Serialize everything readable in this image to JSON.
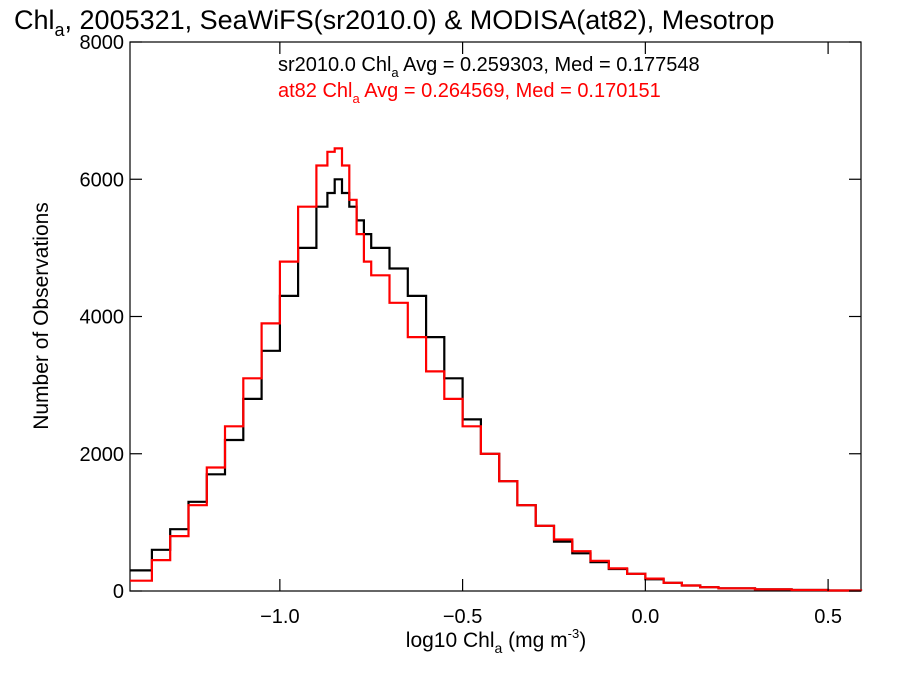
{
  "chart_data": {
    "type": "line",
    "title": {
      "pre": "Chl",
      "sub": "a",
      "post": ", 2005321, SeaWiFS(sr2010.0) & MODISA(at82), Mesotrop"
    },
    "xlabel": {
      "pre": "log10 Chl",
      "sub": "a",
      "mid": " (mg m",
      "sup": "-3",
      "post": ")"
    },
    "ylabel": "Number of Observations",
    "xlim": [
      -1.41,
      0.59
    ],
    "ylim": [
      0,
      8000
    ],
    "x_ticks": [
      {
        "value": -1.0,
        "label": "−1.0"
      },
      {
        "value": -0.5,
        "label": "−0.5"
      },
      {
        "value": 0.0,
        "label": "0.0"
      },
      {
        "value": 0.5,
        "label": "0.5"
      }
    ],
    "y_ticks": [
      {
        "value": 0,
        "label": "0"
      },
      {
        "value": 2000,
        "label": "2000"
      },
      {
        "value": 4000,
        "label": "4000"
      },
      {
        "value": 6000,
        "label": "6000"
      },
      {
        "value": 8000,
        "label": "8000"
      }
    ],
    "grid": false,
    "annotations": [
      {
        "pre": "sr2010.0 Chl",
        "sub": "a",
        "post": " Avg = 0.259303, Med = 0.177548",
        "color": "#000000"
      },
      {
        "pre": "at82 Chl",
        "sub": "a",
        "post": " Avg = 0.264569, Med = 0.170151",
        "color": "#ff0000"
      }
    ],
    "series": [
      {
        "color": "#000000",
        "x": [
          -1.41,
          -1.35,
          -1.3,
          -1.25,
          -1.2,
          -1.15,
          -1.1,
          -1.05,
          -1.0,
          -0.95,
          -0.9,
          -0.87,
          -0.85,
          -0.83,
          -0.81,
          -0.79,
          -0.77,
          -0.75,
          -0.7,
          -0.65,
          -0.6,
          -0.55,
          -0.5,
          -0.45,
          -0.4,
          -0.35,
          -0.3,
          -0.25,
          -0.2,
          -0.15,
          -0.1,
          -0.05,
          0.0,
          0.05,
          0.1,
          0.15,
          0.2,
          0.3,
          0.4,
          0.5,
          0.59
        ],
        "y": [
          300,
          600,
          900,
          1300,
          1700,
          2200,
          2800,
          3500,
          4300,
          5000,
          5600,
          5800,
          6000,
          5800,
          5600,
          5400,
          5200,
          5000,
          4700,
          4300,
          3700,
          3100,
          2500,
          2000,
          1600,
          1250,
          950,
          720,
          550,
          420,
          320,
          250,
          170,
          120,
          80,
          55,
          40,
          25,
          15,
          8,
          5
        ]
      },
      {
        "color": "#ff0000",
        "x": [
          -1.41,
          -1.35,
          -1.3,
          -1.25,
          -1.2,
          -1.15,
          -1.1,
          -1.05,
          -1.0,
          -0.95,
          -0.9,
          -0.87,
          -0.85,
          -0.83,
          -0.81,
          -0.79,
          -0.77,
          -0.75,
          -0.7,
          -0.65,
          -0.6,
          -0.55,
          -0.5,
          -0.45,
          -0.4,
          -0.35,
          -0.3,
          -0.25,
          -0.2,
          -0.15,
          -0.1,
          -0.05,
          0.0,
          0.05,
          0.1,
          0.15,
          0.2,
          0.3,
          0.4,
          0.5,
          0.59
        ],
        "y": [
          150,
          450,
          800,
          1250,
          1800,
          2400,
          3100,
          3900,
          4800,
          5600,
          6200,
          6400,
          6450,
          6200,
          5700,
          5200,
          4800,
          4600,
          4200,
          3700,
          3200,
          2800,
          2400,
          2000,
          1600,
          1250,
          950,
          750,
          580,
          440,
          330,
          250,
          180,
          120,
          80,
          55,
          40,
          25,
          15,
          8,
          5
        ]
      }
    ]
  }
}
